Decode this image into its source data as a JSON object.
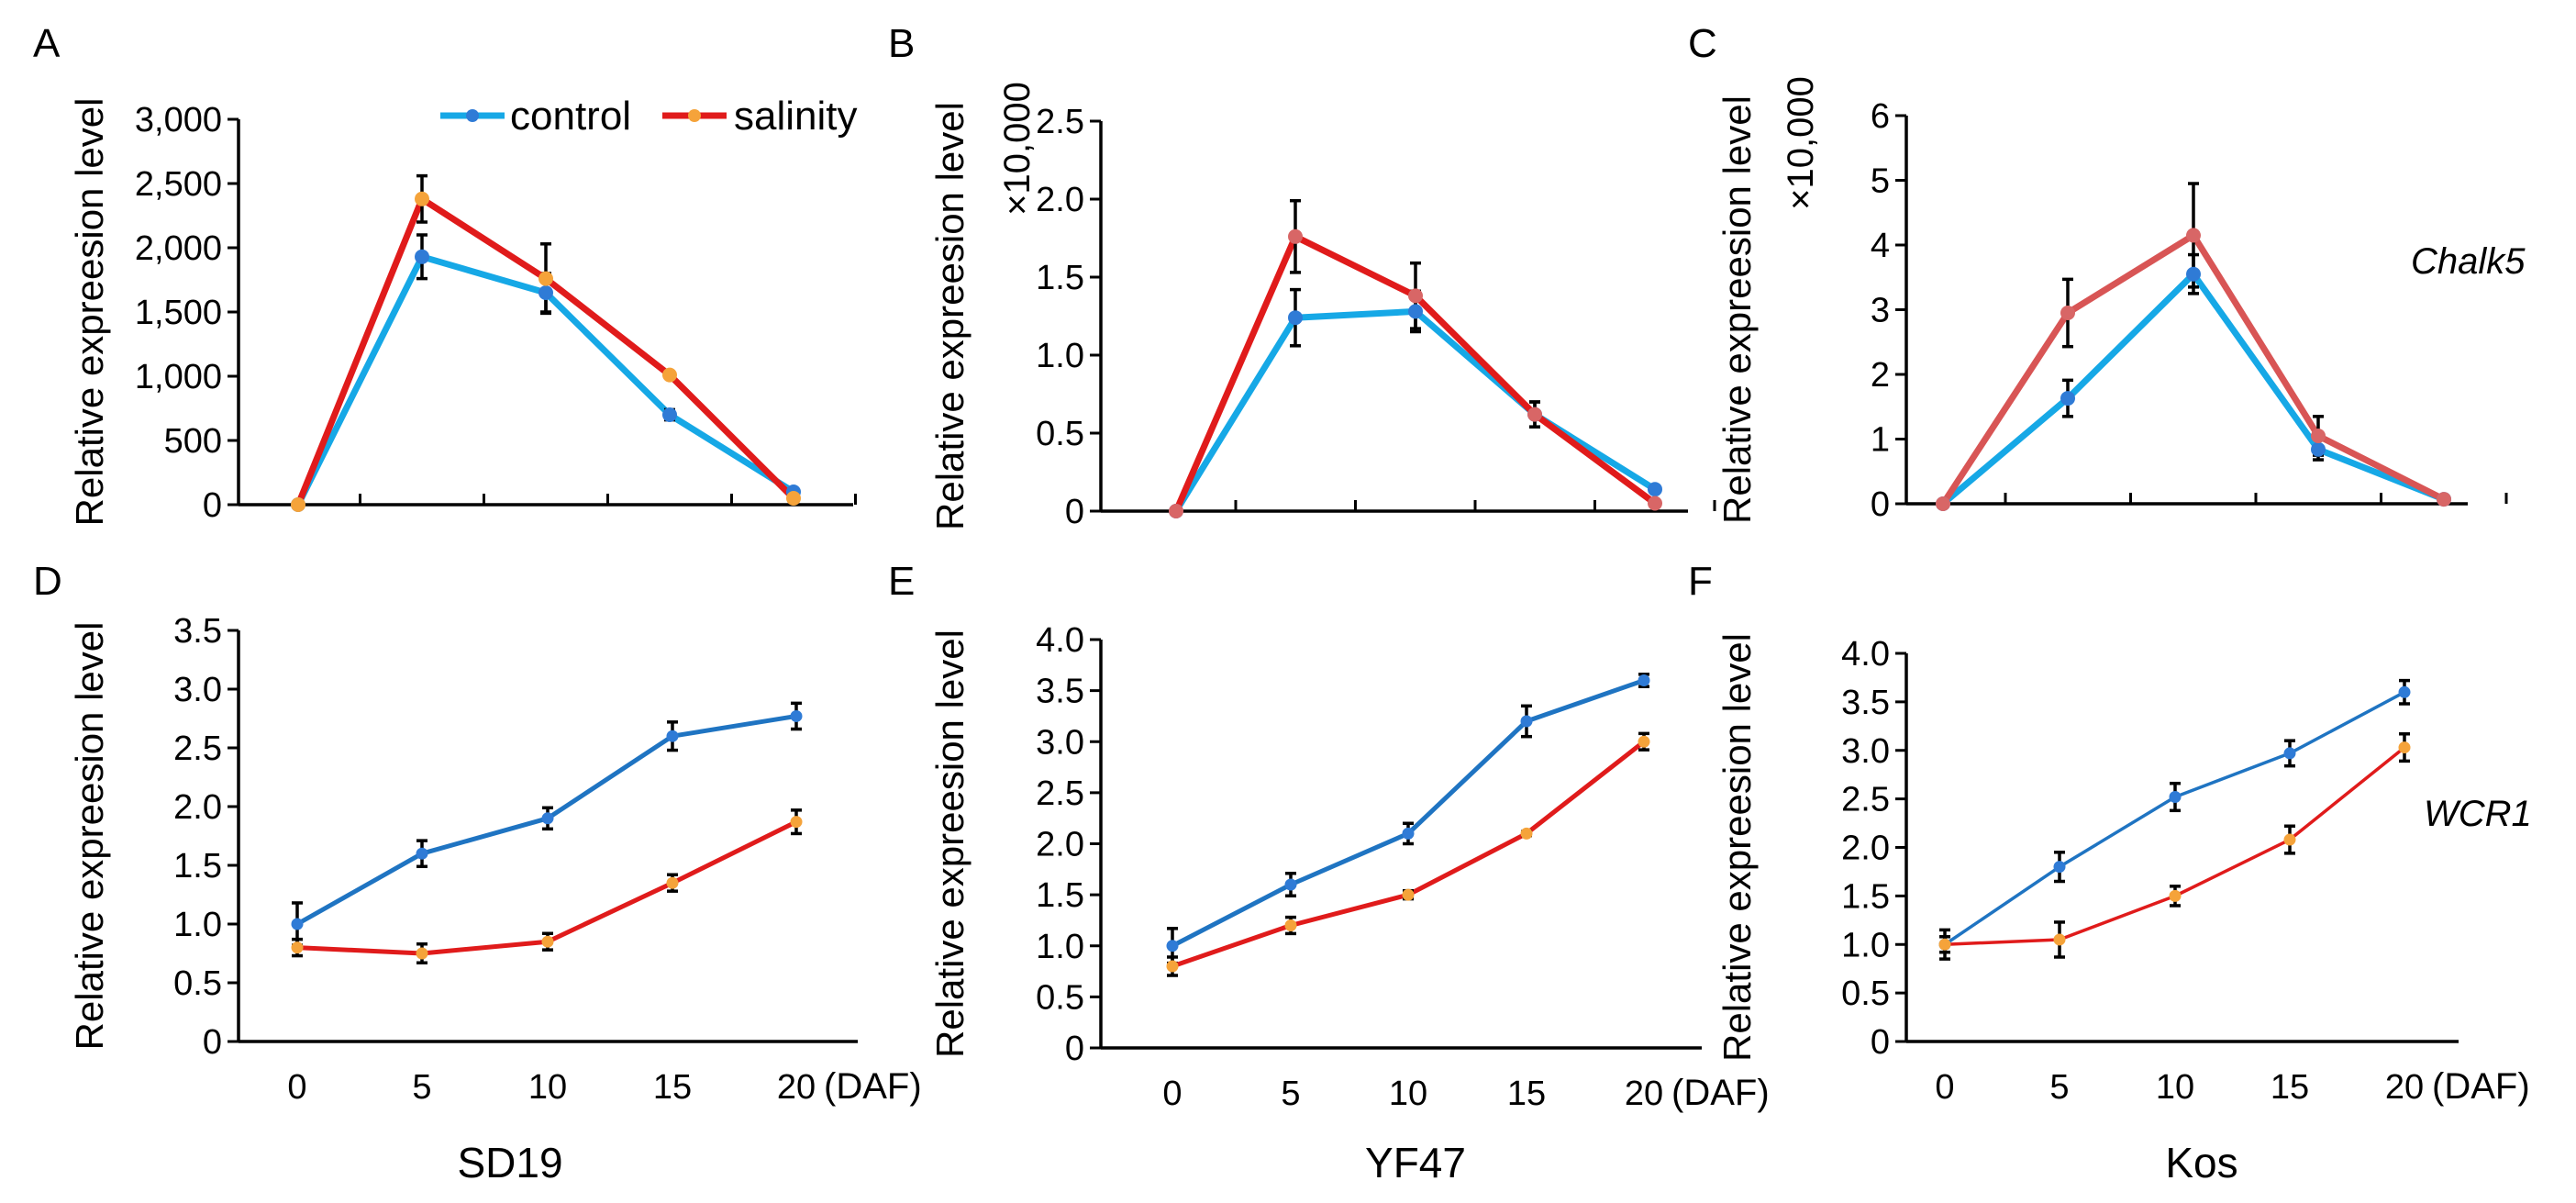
{
  "colors": {
    "control_bright": "#16a8e6",
    "control_dark": "#1f74c2",
    "salinity_red": "#e01b1b",
    "salinity_soft": "#d85555",
    "marker_blue": "#2f7bd6",
    "marker_orange": "#f5a33a",
    "marker_pink": "#d86666"
  },
  "legend": {
    "control_label": "control",
    "salinity_label": "salinity"
  },
  "gene_labels": {
    "row1": "Chalk5",
    "row2": "WCR1"
  },
  "strain_labels": {
    "col1": "SD19",
    "col2": "YF47",
    "col3": "Kos"
  },
  "chart_data": [
    {
      "panel": "A",
      "type": "line",
      "title": "",
      "xlabel": "",
      "ylabel": "Relative expreesion level",
      "multiplier_label": "",
      "x": [
        0,
        5,
        10,
        15,
        20
      ],
      "x_tick_labels": [],
      "x_unit_label": "",
      "ylim": [
        0,
        3000
      ],
      "yticks": [
        0,
        500,
        1000,
        1500,
        2000,
        2500,
        3000
      ],
      "ytick_labels": [
        "0",
        "500",
        "1,000",
        "1,500",
        "2,000",
        "2,500",
        "3,000"
      ],
      "series": [
        {
          "name": "control",
          "values": [
            0,
            1930,
            1650,
            700,
            100
          ],
          "errors": [
            0,
            170,
            150,
            40,
            10
          ],
          "color": "#16a8e6",
          "marker_color": "#2f7bd6"
        },
        {
          "name": "salinity",
          "values": [
            0,
            2380,
            1760,
            1010,
            50
          ],
          "errors": [
            0,
            180,
            270,
            0,
            10
          ],
          "color": "#e01b1b",
          "marker_color": "#f5a33a"
        }
      ]
    },
    {
      "panel": "B",
      "type": "line",
      "title": "",
      "xlabel": "",
      "ylabel": "Relative expreesion level",
      "multiplier_label": "×10,000",
      "x": [
        0,
        5,
        10,
        15,
        20
      ],
      "x_tick_labels": [],
      "x_unit_label": "",
      "ylim": [
        0,
        2.5
      ],
      "yticks": [
        0,
        0.5,
        1.0,
        1.5,
        2.0,
        2.5
      ],
      "ytick_labels": [
        "0",
        "0.5",
        "1.0",
        "1.5",
        "2.0",
        "2.5"
      ],
      "series": [
        {
          "name": "control",
          "values": [
            0,
            1.24,
            1.28,
            0.62,
            0.14
          ],
          "errors": [
            0,
            0.18,
            0.13,
            0.08,
            0.02
          ],
          "color": "#16a8e6",
          "marker_color": "#2f7bd6"
        },
        {
          "name": "salinity",
          "values": [
            0,
            1.76,
            1.38,
            0.62,
            0.05
          ],
          "errors": [
            0,
            0.23,
            0.21,
            0.08,
            0.01
          ],
          "color": "#e01b1b",
          "marker_color": "#d86666"
        }
      ]
    },
    {
      "panel": "C",
      "type": "line",
      "title": "",
      "xlabel": "",
      "ylabel": "Relative expreesion level",
      "multiplier_label": "×10,000",
      "x": [
        0,
        5,
        10,
        15,
        20
      ],
      "x_tick_labels": [],
      "x_unit_label": "",
      "ylim": [
        0,
        6
      ],
      "yticks": [
        0,
        1,
        2,
        3,
        4,
        5,
        6
      ],
      "ytick_labels": [
        "0",
        "1",
        "2",
        "3",
        "4",
        "5",
        "6"
      ],
      "series": [
        {
          "name": "control",
          "values": [
            0,
            1.63,
            3.55,
            0.84,
            0.07
          ],
          "errors": [
            0,
            0.28,
            0.3,
            0.16,
            0.02
          ],
          "color": "#16a8e6",
          "marker_color": "#2f7bd6"
        },
        {
          "name": "salinity",
          "values": [
            0,
            2.95,
            4.15,
            1.05,
            0.07
          ],
          "errors": [
            0,
            0.52,
            0.8,
            0.3,
            0.02
          ],
          "color": "#d85555",
          "marker_color": "#d86666"
        }
      ]
    },
    {
      "panel": "D",
      "type": "line",
      "title": "",
      "xlabel": "",
      "ylabel": "Relative expreesion level",
      "multiplier_label": "",
      "x": [
        0,
        5,
        10,
        15,
        20
      ],
      "x_tick_labels": [
        "0",
        "5",
        "10",
        "15",
        "20"
      ],
      "x_unit_label": "(DAF)",
      "ylim": [
        0,
        3.5
      ],
      "yticks": [
        0,
        0.5,
        1.0,
        1.5,
        2.0,
        2.5,
        3.0,
        3.5
      ],
      "ytick_labels": [
        "0",
        "0.5",
        "1.0",
        "1.5",
        "2.0",
        "2.5",
        "3.0",
        "3.5"
      ],
      "series": [
        {
          "name": "control",
          "values": [
            1.0,
            1.6,
            1.9,
            2.6,
            2.77
          ],
          "errors": [
            0.18,
            0.11,
            0.09,
            0.12,
            0.11
          ],
          "color": "#1f74c2",
          "marker_color": "#2f7bd6"
        },
        {
          "name": "salinity",
          "values": [
            0.8,
            0.75,
            0.85,
            1.35,
            1.87
          ],
          "errors": [
            0.07,
            0.08,
            0.07,
            0.07,
            0.1
          ],
          "color": "#e01b1b",
          "marker_color": "#f5a33a"
        }
      ]
    },
    {
      "panel": "E",
      "type": "line",
      "title": "",
      "xlabel": "",
      "ylabel": "Relative expreesion level",
      "multiplier_label": "",
      "x": [
        0,
        5,
        10,
        15,
        20
      ],
      "x_tick_labels": [
        "0",
        "5",
        "10",
        "15",
        "20"
      ],
      "x_unit_label": "(DAF)",
      "ylim": [
        0,
        4.0
      ],
      "yticks": [
        0,
        0.5,
        1.0,
        1.5,
        2.0,
        2.5,
        3.0,
        3.5,
        4.0
      ],
      "ytick_labels": [
        "0",
        "0.5",
        "1.0",
        "1.5",
        "2.0",
        "2.5",
        "3.0",
        "3.5",
        "4.0"
      ],
      "series": [
        {
          "name": "control",
          "values": [
            1.0,
            1.6,
            2.1,
            3.2,
            3.6
          ],
          "errors": [
            0.17,
            0.11,
            0.1,
            0.15,
            0.06
          ],
          "color": "#1f74c2",
          "marker_color": "#2f7bd6"
        },
        {
          "name": "salinity",
          "values": [
            0.8,
            1.2,
            1.5,
            2.1,
            3.0
          ],
          "errors": [
            0.09,
            0.08,
            0.04,
            0.02,
            0.08
          ],
          "color": "#e01b1b",
          "marker_color": "#f5a33a"
        }
      ]
    },
    {
      "panel": "F",
      "type": "line",
      "title": "",
      "xlabel": "",
      "ylabel": "Relative expreesion level",
      "multiplier_label": "",
      "x": [
        0,
        5,
        10,
        15,
        20
      ],
      "x_tick_labels": [
        "0",
        "5",
        "10",
        "15",
        "20"
      ],
      "x_unit_label": "(DAF)",
      "ylim": [
        0,
        4.0
      ],
      "yticks": [
        0,
        0.5,
        1.0,
        1.5,
        2.0,
        2.5,
        3.0,
        3.5,
        4.0
      ],
      "ytick_labels": [
        "0",
        "0.5",
        "1.0",
        "1.5",
        "2.0",
        "2.5",
        "3.0",
        "3.5",
        "4.0"
      ],
      "series": [
        {
          "name": "control",
          "values": [
            1.0,
            1.8,
            2.52,
            2.97,
            3.6
          ],
          "errors": [
            0.15,
            0.15,
            0.14,
            0.13,
            0.12
          ],
          "color": "#1f74c2",
          "marker_color": "#2f7bd6"
        },
        {
          "name": "salinity",
          "values": [
            1.0,
            1.05,
            1.5,
            2.08,
            3.03
          ],
          "errors": [
            0.08,
            0.18,
            0.1,
            0.14,
            0.14
          ],
          "color": "#e01b1b",
          "marker_color": "#f5a33a"
        }
      ]
    }
  ]
}
